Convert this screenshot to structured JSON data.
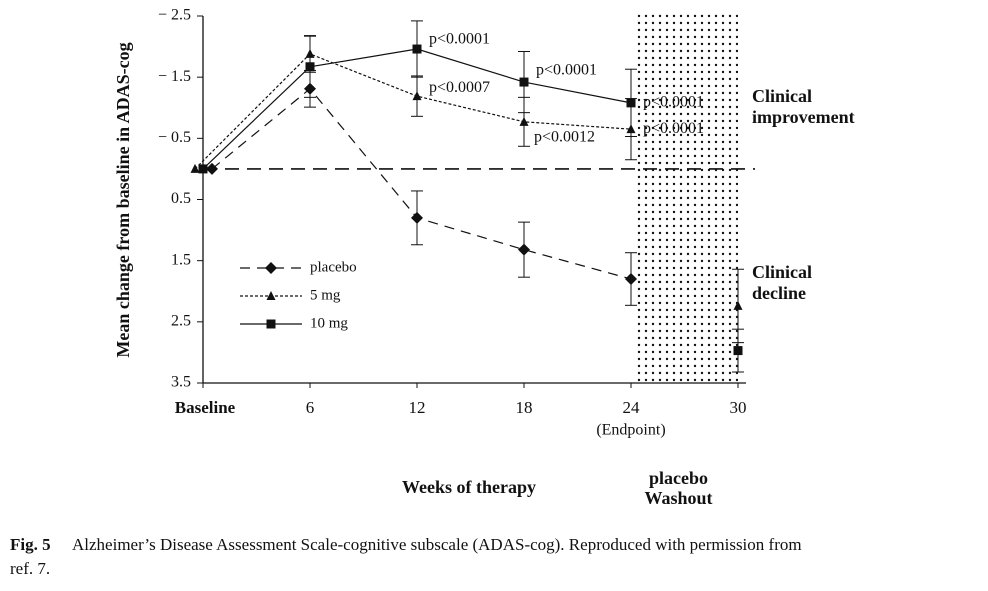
{
  "chart_data": {
    "type": "line",
    "ylabel": "Mean change from baseline in ADAS-cog",
    "xlabel": "Weeks of therapy",
    "x": [
      0,
      6,
      12,
      18,
      24,
      30
    ],
    "xlim": [
      0,
      30
    ],
    "xticks": [
      {
        "value": 0,
        "label": "Baseline"
      },
      6,
      12,
      18,
      24,
      30
    ],
    "ylim": [
      -2.5,
      3.5
    ],
    "yinvert": true,
    "yticks": [
      {
        "value": -2.5,
        "label": "− 2.5"
      },
      {
        "value": -1.5,
        "label": "− 1.5"
      },
      {
        "value": -0.5,
        "label": "− 0.5"
      },
      0.5,
      1.5,
      2.5,
      3.5
    ],
    "washout": [
      24,
      30
    ],
    "series": [
      {
        "name": "placebo",
        "color": "#111",
        "values": [
          0,
          -1.31,
          0.8,
          1.32,
          1.8,
          null
        ],
        "errors": [
          null,
          0.3,
          0.44,
          0.45,
          0.43,
          null
        ],
        "value_labels": [
          null,
          null,
          null,
          null,
          null,
          null
        ]
      },
      {
        "name": "5 mg",
        "color": "#111",
        "values": [
          0,
          -1.88,
          -1.19,
          -0.77,
          -0.65,
          2.24
        ],
        "errors": [
          null,
          0.3,
          0.33,
          0.4,
          0.5,
          0.6
        ],
        "value_labels": [
          null,
          null,
          "p<0.0007",
          "p<0.0012",
          "p<0.0001",
          null
        ]
      },
      {
        "name": "10 mg",
        "color": "#111",
        "values": [
          0,
          -1.67,
          -1.96,
          -1.42,
          -1.08,
          2.97
        ],
        "errors": [
          null,
          0.5,
          0.46,
          0.5,
          0.55,
          0.35
        ],
        "value_labels": [
          null,
          null,
          "p<0.0001",
          "p<0.0001",
          "p<0.0001",
          null
        ]
      }
    ],
    "annotations": [
      "(Endpoint)",
      "Clinical improvement",
      "Clinical decline",
      "placebo Washout"
    ]
  },
  "caption": {
    "label": "Fig. 5",
    "text": "Alzheimer’s Disease Assessment Scale-cognitive subscale (ADAS-cog). Reproduced with permission from",
    "text2": "ref. 7."
  }
}
